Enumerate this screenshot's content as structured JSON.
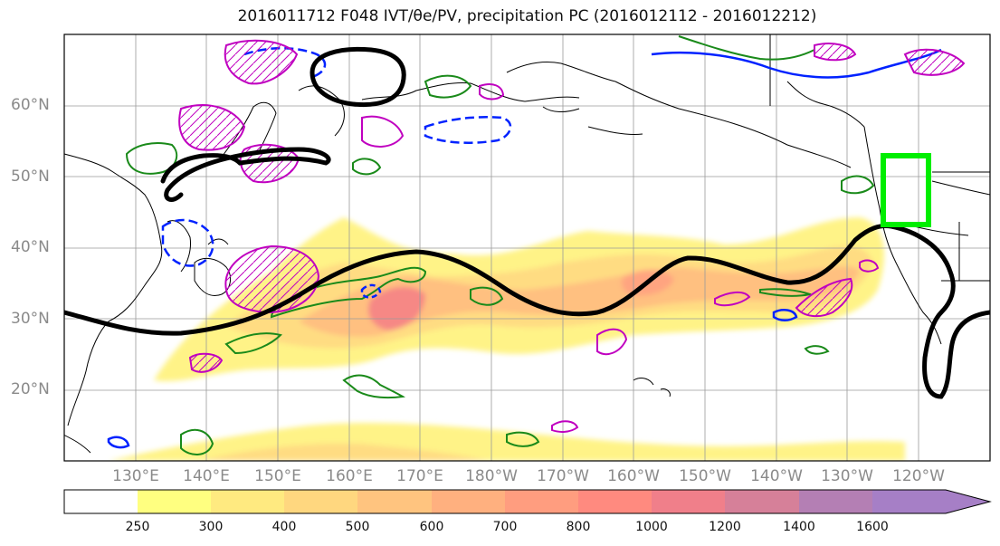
{
  "title": "2016011712 F048 IVT/θe/PV, precipitation PC (2016012112 - 2016012212)",
  "map": {
    "projection": "PlateCarree",
    "lon_range": [
      120,
      250
    ],
    "lat_range": [
      10,
      70
    ],
    "latitude_labels": [
      "20°N",
      "30°N",
      "40°N",
      "50°N",
      "60°N"
    ],
    "longitude_labels": [
      "130°E",
      "140°E",
      "150°E",
      "160°E",
      "170°E",
      "180°W",
      "170°W",
      "160°W",
      "150°W",
      "140°W",
      "130°W",
      "120°W"
    ],
    "gridlines": true,
    "contour_colors": {
      "ivt_fill_scale": "yellow-orange-red-purple",
      "theta_e": "#000000",
      "pv_positive": "#008000",
      "pv_negative": "#0000ff",
      "precip_pc": "#c000c0",
      "target_box": "#00ff00"
    },
    "target_box_label": "green-rectangle"
  },
  "colorbar": {
    "levels": [
      "250",
      "300",
      "400",
      "500",
      "600",
      "700",
      "800",
      "1000",
      "1200",
      "1400",
      "1600"
    ],
    "colors": [
      "#ffffff",
      "#ffff80",
      "#ffea80",
      "#ffd77f",
      "#ffc47f",
      "#ffb07f",
      "#ff9d7f",
      "#ff8a7f",
      "#f07f8a",
      "#d68099",
      "#b47fb4"
    ],
    "extend": "max"
  }
}
